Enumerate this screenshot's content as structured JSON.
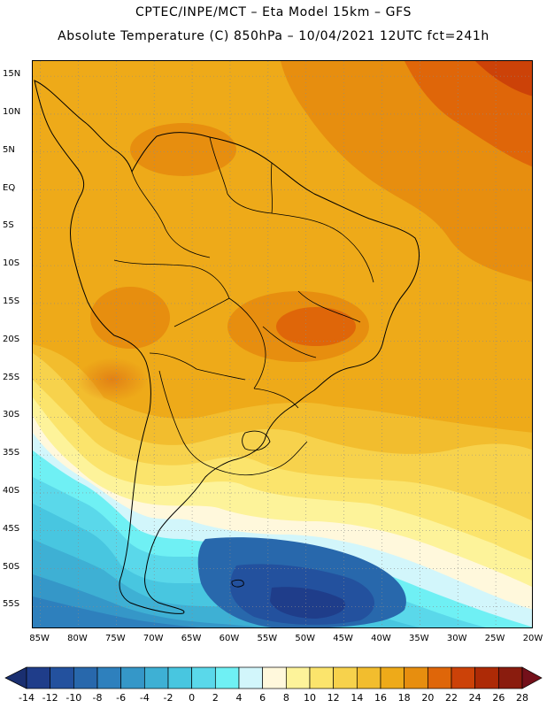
{
  "header": {
    "title_line1": "CPTEC/INPE/MCT –  Eta Model 15km – GFS",
    "title_line2": "Absolute Temperature (C) 850hPa – 10/04/2021 12UTC fct=241h"
  },
  "map": {
    "lat_labels": [
      "15N",
      "10N",
      "5N",
      "EQ",
      "5S",
      "10S",
      "15S",
      "20S",
      "25S",
      "30S",
      "35S",
      "40S",
      "45S",
      "50S",
      "55S"
    ],
    "lat_values": [
      15,
      10,
      5,
      0,
      -5,
      -10,
      -15,
      -20,
      -25,
      -30,
      -35,
      -40,
      -45,
      -50,
      -55
    ],
    "lon_labels": [
      "85W",
      "80W",
      "75W",
      "70W",
      "65W",
      "60W",
      "55W",
      "50W",
      "45W",
      "40W",
      "35W",
      "30W",
      "25W",
      "20W"
    ],
    "lon_values": [
      -85,
      -80,
      -75,
      -70,
      -65,
      -60,
      -55,
      -50,
      -45,
      -40,
      -35,
      -30,
      -25,
      -20
    ],
    "lat_range": [
      -58,
      17
    ],
    "lon_range": [
      -86,
      -20
    ],
    "grid": "dotted"
  },
  "colorbar": {
    "labels": [
      "-14",
      "-12",
      "-10",
      "-8",
      "-6",
      "-4",
      "-2",
      "0",
      "2",
      "4",
      "6",
      "8",
      "10",
      "12",
      "14",
      "16",
      "18",
      "20",
      "22",
      "24",
      "26",
      "28"
    ],
    "colors": [
      "#1f3d8a",
      "#23519e",
      "#2868ac",
      "#2e80bd",
      "#3597c8",
      "#3eb0d4",
      "#48c6e0",
      "#5ad8ea",
      "#6ff0f4",
      "#d2f6fb",
      "#fff8dc",
      "#fdf39a",
      "#fbe46c",
      "#f7d24c",
      "#f2bd2e",
      "#eeaa19",
      "#e78e0f",
      "#df6609",
      "#cc4208",
      "#ad2a06",
      "#8a1c0e"
    ],
    "under_color": "#1a2f70",
    "over_color": "#74101a"
  }
}
